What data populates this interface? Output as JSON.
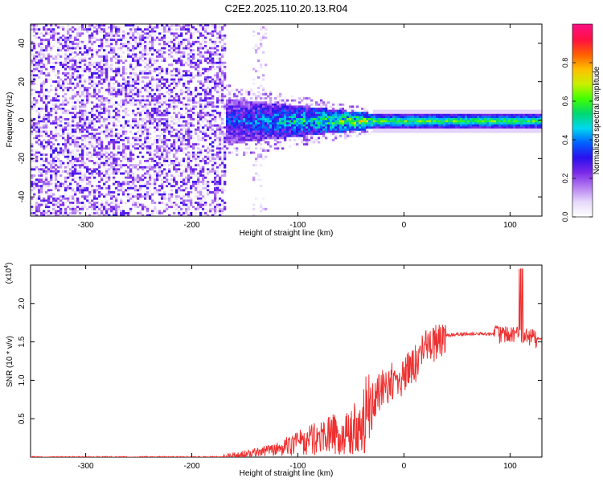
{
  "title": "C2E2.2025.110.20.13.R04",
  "chart_data": [
    {
      "type": "heatmap",
      "xlabel": "Height of straight line (km)",
      "ylabel": "Frequency (Hz)",
      "xlim": [
        -352,
        130
      ],
      "ylim": [
        -50,
        50
      ],
      "x_ticks": [
        -300,
        -200,
        -100,
        0,
        100
      ],
      "y_ticks": [
        -40,
        -20,
        0,
        20,
        40
      ],
      "colorbar": {
        "label": "Normalized spectral amplitude",
        "range": [
          0,
          1
        ],
        "ticks": [
          0.0,
          0.2,
          0.4,
          0.6,
          0.8
        ],
        "colors": [
          "#ffffff",
          "#e6d8fb",
          "#b47cf0",
          "#7a28e8",
          "#2a10ee",
          "#0060ff",
          "#00d8f0",
          "#00d870",
          "#40ff00",
          "#c8f000",
          "#ffc000",
          "#ff6000",
          "#ff1040",
          "#ff1080"
        ]
      },
      "regions": [
        {
          "name": "noise",
          "x": [
            -352,
            -170
          ],
          "f_center": 0,
          "f_halfwidth": 50,
          "level": 0.15
        },
        {
          "name": "onset",
          "x": [
            -170,
            -30
          ],
          "f_center": 0,
          "f_halfwidth_start": 12,
          "f_halfwidth_end": 4,
          "level_start": 0.35,
          "level_end": 0.7
        },
        {
          "name": "carrier",
          "x": [
            -30,
            130
          ],
          "f_center": 0,
          "f_halfwidth": 4,
          "level": 0.6
        }
      ]
    },
    {
      "type": "line",
      "xlabel": "Height of straight line (km)",
      "ylabel": "SNR (10 * v/v)",
      "exponent_label": "(x10",
      "exponent_power": "4",
      "exponent_close": ")",
      "xlim": [
        -352,
        130
      ],
      "ylim": [
        0,
        2.5
      ],
      "x_ticks": [
        -300,
        -200,
        -100,
        0,
        100
      ],
      "y_ticks": [
        0.5,
        1.0,
        1.5,
        2.0
      ],
      "color": "#ee3030",
      "x": [
        -352,
        -250,
        -170,
        -160,
        -150,
        -140,
        -130,
        -120,
        -110,
        -100,
        -90,
        -80,
        -70,
        -60,
        -50,
        -40,
        -30,
        -20,
        -10,
        0,
        10,
        20,
        30,
        40,
        50,
        60,
        70,
        80,
        90,
        95,
        100,
        105,
        110,
        115,
        120,
        130
      ],
      "values": [
        0.0,
        0.0,
        0.0,
        0.02,
        0.04,
        0.06,
        0.08,
        0.1,
        0.14,
        0.18,
        0.22,
        0.25,
        0.3,
        0.3,
        0.35,
        0.45,
        0.7,
        0.9,
        1.0,
        1.05,
        1.2,
        1.4,
        1.5,
        1.58,
        1.6,
        1.6,
        1.61,
        1.6,
        1.6,
        1.6,
        1.62,
        1.58,
        1.6,
        1.6,
        1.55,
        1.54
      ]
    }
  ]
}
